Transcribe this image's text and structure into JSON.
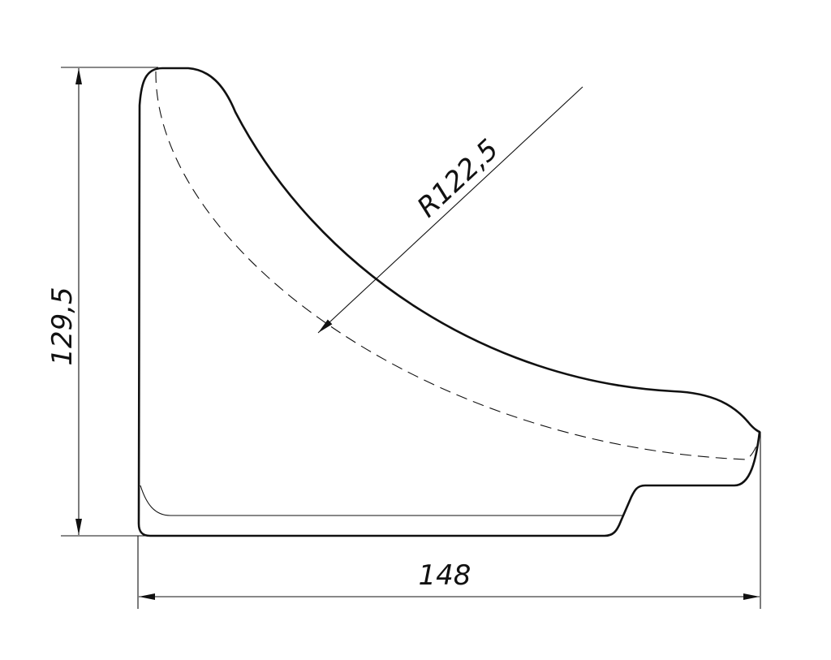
{
  "dimensions": {
    "height": {
      "label": "129,5"
    },
    "radius": {
      "label": "R122,5"
    },
    "width": {
      "label": "148"
    }
  }
}
